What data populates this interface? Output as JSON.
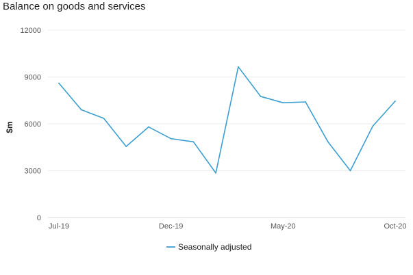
{
  "title": "Balance on goods and services",
  "chart_data": {
    "type": "line",
    "title": "Balance on goods and services",
    "xlabel": "",
    "ylabel": "$m",
    "ylim": [
      0,
      12000
    ],
    "yticks": [
      0,
      3000,
      6000,
      9000,
      12000
    ],
    "ytick_labels": [
      "0",
      "3000",
      "6000",
      "9000",
      "12000"
    ],
    "x": [
      "Jul-19",
      "Aug-19",
      "Sep-19",
      "Oct-19",
      "Nov-19",
      "Dec-19",
      "Jan-20",
      "Feb-20",
      "Mar-20",
      "Apr-20",
      "May-20",
      "Jun-20",
      "Jul-20",
      "Aug-20",
      "Sep-20",
      "Oct-20"
    ],
    "xtick_labels": [
      "Jul-19",
      "Dec-19",
      "May-20",
      "Oct-20"
    ],
    "grid": true,
    "legend_position": "bottom",
    "color": "#3b9fd1",
    "series": [
      {
        "name": "Seasonally adjusted",
        "values": [
          8600,
          6900,
          6350,
          4550,
          5800,
          5050,
          4850,
          2850,
          9650,
          7750,
          7350,
          7400,
          4850,
          3000,
          5850,
          7450
        ]
      }
    ]
  }
}
